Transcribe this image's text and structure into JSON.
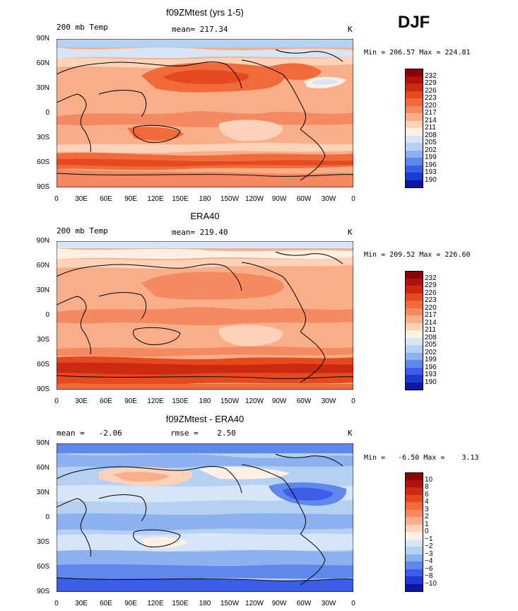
{
  "season": "DJF",
  "panels": [
    {
      "title": "f09ZMtest (yrs 1-5)",
      "left_label": "200 mb Temp",
      "center_label": "mean= 217.34",
      "units": "K",
      "minmax": "Min = 206.57 Max = 224.81",
      "colorbar": [
        "232",
        "229",
        "226",
        "223",
        "220",
        "217",
        "214",
        "211",
        "208",
        "205",
        "202",
        "199",
        "196",
        "193",
        "190"
      ],
      "colors": [
        "#8b0000",
        "#b01212",
        "#cc2a10",
        "#e54a1e",
        "#f06a3a",
        "#f58a60",
        "#f9ae8a",
        "#fcd3b8",
        "#fff0e3",
        "#d6e6f8",
        "#b6d0f2",
        "#8cb1ee",
        "#5f88ec",
        "#3b5ee8",
        "#1f3ad2",
        "#0a1a9a"
      ]
    },
    {
      "title": "ERA40",
      "left_label": "200 mb Temp",
      "center_label": "mean= 219.40",
      "units": "K",
      "minmax": "Min = 209.52 Max = 226.60",
      "colorbar": [
        "232",
        "229",
        "226",
        "223",
        "220",
        "217",
        "214",
        "211",
        "208",
        "205",
        "202",
        "199",
        "196",
        "193",
        "190"
      ],
      "colors": [
        "#8b0000",
        "#b01212",
        "#cc2a10",
        "#e54a1e",
        "#f06a3a",
        "#f58a60",
        "#f9ae8a",
        "#fcd3b8",
        "#fff0e3",
        "#d6e6f8",
        "#b6d0f2",
        "#8cb1ee",
        "#5f88ec",
        "#3b5ee8",
        "#1f3ad2",
        "#0a1a9a"
      ]
    },
    {
      "title": "f09ZMtest - ERA40",
      "left_label": "mean =   -2.06",
      "center_label": "rmse =    2.50",
      "units": "K",
      "minmax": "Min =   -6.50 Max =    3.13",
      "colorbar": [
        "10",
        "8",
        "6",
        "4",
        "3",
        "2",
        "1",
        "0",
        "−1",
        "−2",
        "−3",
        "−4",
        "−6",
        "−8",
        "−10"
      ],
      "colors": [
        "#8b0000",
        "#b01212",
        "#cc2a10",
        "#e54a1e",
        "#f06a3a",
        "#f58a60",
        "#f9ae8a",
        "#fcd3b8",
        "#fff0e3",
        "#d6e6f8",
        "#b6d0f2",
        "#8cb1ee",
        "#5f88ec",
        "#3b5ee8",
        "#1f3ad2",
        "#0a1a9a"
      ]
    }
  ],
  "lat_labels": [
    "90N",
    "60N",
    "30N",
    "0",
    "30S",
    "60S",
    "90S"
  ],
  "lon_labels": [
    "0",
    "30E",
    "60E",
    "90E",
    "120E",
    "150E",
    "180",
    "150W",
    "120W",
    "90W",
    "60W",
    "30W",
    "0"
  ]
}
